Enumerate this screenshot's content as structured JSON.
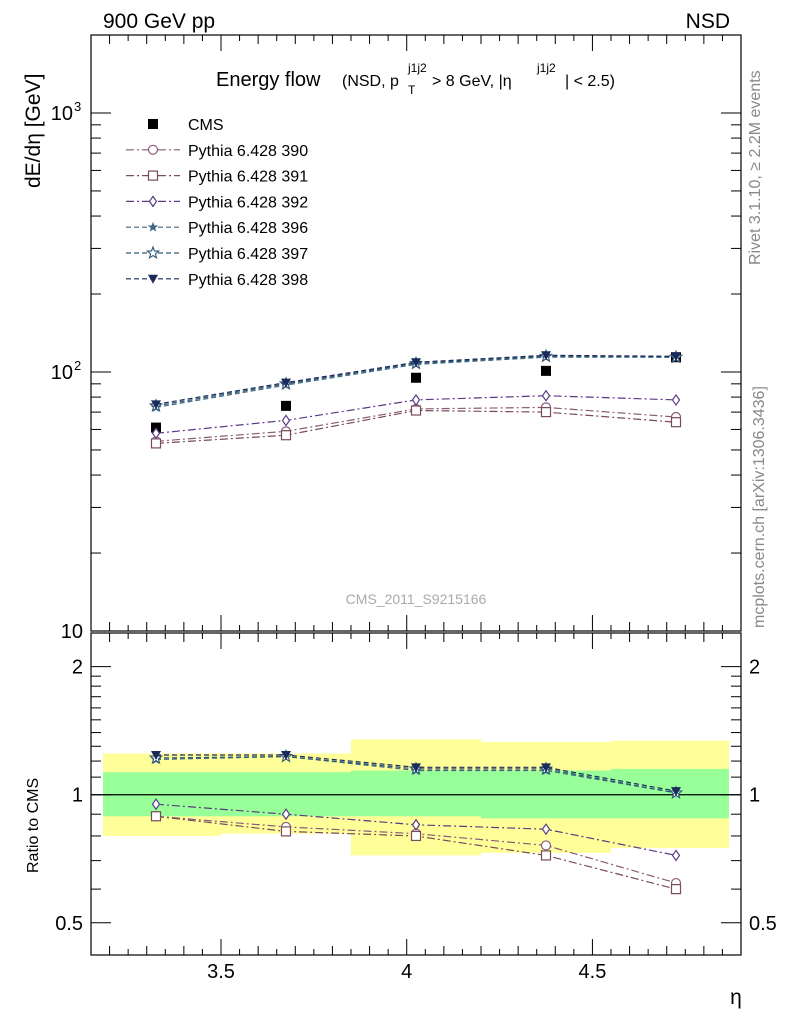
{
  "header": {
    "left": "900 GeV pp",
    "right": "NSD"
  },
  "side_labels": {
    "rivet": "Rivet 3.1.10, ≥ 2.2M events",
    "mcplots": "mcplots.cern.ch [arXiv:1306.3436]"
  },
  "watermark": "CMS_2011_S9215166",
  "chart_data": [
    {
      "type": "line",
      "panel": "main",
      "title": "Energy flow",
      "title_suffix": {
        "open": "(NSD, p",
        "pt_sup": "j1j2",
        "pt_sub": "T",
        "mid": " > 8 GeV, |η",
        "eta_sup": "j1j2",
        "close": "| < 2.5)"
      },
      "xlabel": "η",
      "ylabel": "dE/dη [GeV]",
      "yscale": "log",
      "xlim": [
        3.15,
        4.9
      ],
      "ylim": [
        10,
        2000
      ],
      "x": [
        3.325,
        3.675,
        4.025,
        4.375,
        4.725
      ],
      "x_ticks": [
        3.5,
        4.0,
        4.5
      ],
      "x_tick_labels": [
        "3.5",
        "4",
        "4.5"
      ],
      "y_ticks": [
        10,
        100,
        1000
      ],
      "y_tick_labels": [
        "10",
        "10",
        "10"
      ],
      "y_tick_exponents": [
        "",
        "2",
        "3"
      ],
      "legend_position": "top-left",
      "series": [
        {
          "name": "CMS",
          "marker": "filled-square",
          "color": "#000000",
          "values": [
            61,
            74,
            95,
            101,
            114
          ]
        },
        {
          "name": "Pythia 6.428 390",
          "marker": "open-circle",
          "color": "#8a5a7a",
          "values": [
            54,
            59,
            72,
            73,
            67
          ]
        },
        {
          "name": "Pythia 6.428 391",
          "marker": "open-square",
          "color": "#7a4a5a",
          "values": [
            53,
            57,
            71,
            70,
            64
          ]
        },
        {
          "name": "Pythia 6.428 392",
          "marker": "open-diamond",
          "color": "#5a3a82",
          "values": [
            58,
            65,
            78,
            81,
            78
          ]
        },
        {
          "name": "Pythia 6.428 396",
          "marker": "filled-star",
          "color": "#3f6a82",
          "values": [
            73,
            89,
            107,
            114,
            114
          ]
        },
        {
          "name": "Pythia 6.428 397",
          "marker": "open-star",
          "color": "#2f5878",
          "values": [
            74,
            90,
            108,
            115,
            114
          ]
        },
        {
          "name": "Pythia 6.428 398",
          "marker": "filled-triangle-down",
          "color": "#1a2a5a",
          "values": [
            75,
            91,
            109,
            116,
            115
          ]
        }
      ]
    },
    {
      "type": "line",
      "panel": "ratio",
      "ylabel": "Ratio to CMS",
      "xlabel": "η",
      "yscale": "log",
      "xlim": [
        3.15,
        4.9
      ],
      "ylim": [
        0.42,
        2.4
      ],
      "y_ticks": [
        0.5,
        1,
        2
      ],
      "y_tick_labels": [
        "0.5",
        "1",
        "2"
      ],
      "x": [
        3.325,
        3.675,
        4.025,
        4.375,
        4.725
      ],
      "bands": [
        {
          "x_edges": [
            3.15,
            3.5,
            3.85,
            4.2,
            4.55,
            4.9
          ],
          "yellow_low": [
            0.8,
            0.81,
            0.72,
            0.73,
            0.75
          ],
          "yellow_high": [
            1.25,
            1.25,
            1.35,
            1.33,
            1.34
          ],
          "green_low": [
            0.89,
            0.89,
            0.89,
            0.88,
            0.88
          ],
          "green_high": [
            1.13,
            1.13,
            1.14,
            1.14,
            1.15
          ]
        }
      ],
      "series": [
        {
          "name": "Pythia 6.428 390",
          "values": [
            0.89,
            0.84,
            0.81,
            0.76,
            0.62
          ]
        },
        {
          "name": "Pythia 6.428 391",
          "values": [
            0.89,
            0.82,
            0.8,
            0.72,
            0.6
          ]
        },
        {
          "name": "Pythia 6.428 392",
          "values": [
            0.95,
            0.9,
            0.85,
            0.83,
            0.72
          ]
        },
        {
          "name": "Pythia 6.428 396",
          "values": [
            1.21,
            1.23,
            1.14,
            1.14,
            1.01
          ]
        },
        {
          "name": "Pythia 6.428 397",
          "values": [
            1.22,
            1.23,
            1.15,
            1.15,
            1.01
          ]
        },
        {
          "name": "Pythia 6.428 398",
          "values": [
            1.24,
            1.24,
            1.16,
            1.16,
            1.02
          ]
        }
      ]
    }
  ]
}
